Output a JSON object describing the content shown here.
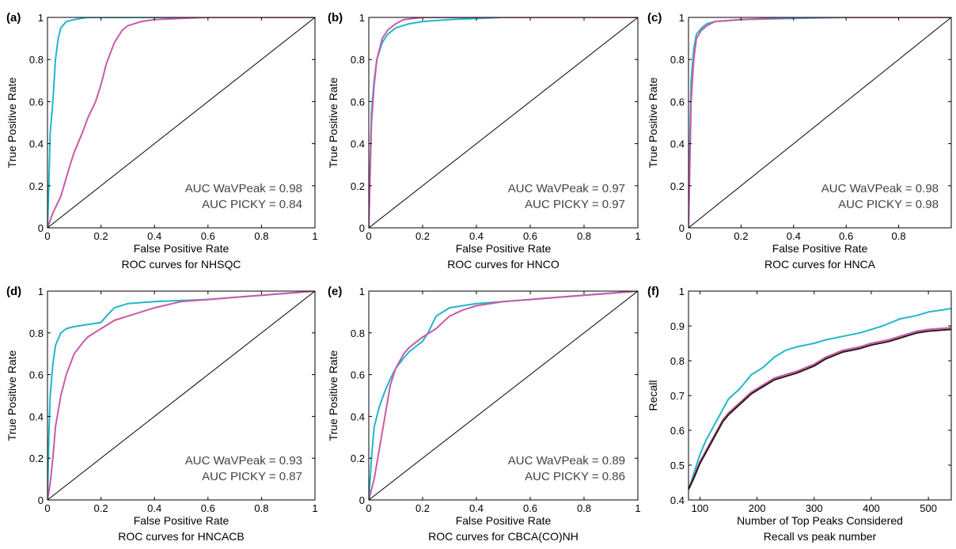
{
  "colors": {
    "wavpeak": "#1fb7c9",
    "picky": "#c85aa8",
    "diagonal": "#000000",
    "picky_recall": "#2a1a1a"
  },
  "chart_data": [
    {
      "panel": "(a)",
      "type": "line",
      "title": "ROC curves for NHSQC",
      "xlabel": "False Positive Rate",
      "ylabel": "True Positive Rate",
      "xlim": [
        0,
        1
      ],
      "ylim": [
        0,
        1
      ],
      "xticks": [
        0,
        0.2,
        0.4,
        0.6,
        0.8,
        1
      ],
      "xtick_labels": [
        "0",
        "0.2",
        "0.4",
        "0.6",
        "0.8",
        "1"
      ],
      "yticks": [
        0,
        0.2,
        0.4,
        0.6,
        0.8,
        1
      ],
      "ytick_labels": [
        "0",
        "0.2",
        "0.4",
        "0.6",
        "0.8",
        "1"
      ],
      "annotations": [
        "AUC WaVPeak = 0.98",
        "AUC PICKY = 0.84"
      ],
      "series": [
        {
          "color_key": "wavpeak",
          "x": [
            0,
            0.005,
            0.01,
            0.02,
            0.03,
            0.04,
            0.05,
            0.07,
            0.1,
            0.15,
            0.3,
            1
          ],
          "y": [
            0,
            0.2,
            0.45,
            0.6,
            0.8,
            0.9,
            0.95,
            0.98,
            0.99,
            1,
            1,
            1
          ]
        },
        {
          "color_key": "picky",
          "x": [
            0,
            0.02,
            0.05,
            0.08,
            0.1,
            0.13,
            0.15,
            0.18,
            0.2,
            0.22,
            0.25,
            0.28,
            0.3,
            0.35,
            0.4,
            0.5,
            0.6,
            1
          ],
          "y": [
            0,
            0.07,
            0.15,
            0.28,
            0.36,
            0.45,
            0.52,
            0.6,
            0.68,
            0.78,
            0.88,
            0.94,
            0.96,
            0.98,
            0.99,
            0.995,
            1,
            1
          ]
        },
        {
          "color_key": "diagonal",
          "x": [
            0,
            1
          ],
          "y": [
            0,
            1
          ]
        }
      ]
    },
    {
      "panel": "(b)",
      "type": "line",
      "title": "ROC curves for HNCO",
      "xlabel": "False Positive Rate",
      "ylabel": "True Positive Rate",
      "xlim": [
        0,
        1
      ],
      "ylim": [
        0,
        1
      ],
      "xticks": [
        0,
        0.2,
        0.4,
        0.6,
        0.8,
        1
      ],
      "xtick_labels": [
        "0",
        "0.2",
        "0.4",
        "0.6",
        "0.8",
        "1"
      ],
      "yticks": [
        0,
        0.2,
        0.4,
        0.6,
        0.8,
        1
      ],
      "ytick_labels": [
        "0",
        "0.2",
        "0.4",
        "0.6",
        "0.8",
        "1"
      ],
      "annotations": [
        "AUC WaVPeak = 0.97",
        "AUC PICKY = 0.97"
      ],
      "series": [
        {
          "color_key": "wavpeak",
          "x": [
            0,
            0.005,
            0.01,
            0.02,
            0.03,
            0.05,
            0.07,
            0.1,
            0.15,
            0.2,
            0.3,
            0.5,
            1
          ],
          "y": [
            0,
            0.3,
            0.55,
            0.7,
            0.8,
            0.88,
            0.92,
            0.95,
            0.97,
            0.98,
            0.99,
            1,
            1
          ]
        },
        {
          "color_key": "picky",
          "x": [
            0,
            0.005,
            0.01,
            0.02,
            0.03,
            0.05,
            0.07,
            0.1,
            0.13,
            0.2,
            0.4,
            1
          ],
          "y": [
            0,
            0.25,
            0.5,
            0.68,
            0.8,
            0.9,
            0.94,
            0.97,
            0.99,
            1,
            1,
            1
          ]
        },
        {
          "color_key": "diagonal",
          "x": [
            0,
            1
          ],
          "y": [
            0,
            1
          ]
        }
      ]
    },
    {
      "panel": "(c)",
      "type": "line",
      "title": "ROC curves for HNCA",
      "xlabel": "False Positive Rate",
      "ylabel": "True Positive Rate",
      "xlim": [
        0,
        1
      ],
      "ylim": [
        0,
        1
      ],
      "xticks": [
        0,
        0.2,
        0.4,
        0.6,
        0.8
      ],
      "xtick_labels": [
        "0",
        "0.2",
        "0.4",
        "0.6",
        "0.8"
      ],
      "yticks": [
        0,
        0.2,
        0.4,
        0.6,
        0.8,
        1
      ],
      "ytick_labels": [
        "0",
        "0.2",
        "0.4",
        "0.6",
        "0.8",
        "1"
      ],
      "annotations": [
        "AUC WaVPeak = 0.98",
        "AUC PICKY = 0.98"
      ],
      "series": [
        {
          "color_key": "wavpeak",
          "x": [
            0,
            0.005,
            0.01,
            0.02,
            0.03,
            0.05,
            0.07,
            0.1,
            0.2,
            0.4,
            0.6,
            1
          ],
          "y": [
            0,
            0.4,
            0.7,
            0.85,
            0.92,
            0.95,
            0.97,
            0.98,
            0.99,
            0.995,
            1,
            1
          ]
        },
        {
          "color_key": "picky",
          "x": [
            0,
            0.005,
            0.01,
            0.02,
            0.03,
            0.05,
            0.07,
            0.1,
            0.2,
            0.4,
            1
          ],
          "y": [
            0,
            0.3,
            0.6,
            0.8,
            0.9,
            0.94,
            0.96,
            0.98,
            0.99,
            1,
            1
          ]
        },
        {
          "color_key": "diagonal",
          "x": [
            0,
            1
          ],
          "y": [
            0,
            1
          ]
        }
      ]
    },
    {
      "panel": "(d)",
      "type": "line",
      "title": "ROC curves for HNCACB",
      "xlabel": "False Positive Rate",
      "ylabel": "True Positive Rate",
      "xlim": [
        0,
        1
      ],
      "ylim": [
        0,
        1
      ],
      "xticks": [
        0,
        0.2,
        0.4,
        0.6,
        0.8,
        1
      ],
      "xtick_labels": [
        "0",
        "0.2",
        "0.4",
        "0.6",
        "0.8",
        "1"
      ],
      "yticks": [
        0,
        0.2,
        0.4,
        0.6,
        0.8,
        1
      ],
      "ytick_labels": [
        "0",
        "0.2",
        "0.4",
        "0.6",
        "0.8",
        "1"
      ],
      "annotations": [
        "AUC WaVPeak = 0.93",
        "AUC PICKY = 0.87"
      ],
      "series": [
        {
          "color_key": "wavpeak",
          "x": [
            0,
            0.005,
            0.01,
            0.02,
            0.03,
            0.05,
            0.07,
            0.1,
            0.15,
            0.2,
            0.22,
            0.25,
            0.3,
            0.4,
            0.5,
            0.6,
            0.7,
            0.8,
            0.9,
            1
          ],
          "y": [
            0,
            0.3,
            0.5,
            0.65,
            0.74,
            0.8,
            0.82,
            0.83,
            0.84,
            0.85,
            0.88,
            0.92,
            0.94,
            0.95,
            0.955,
            0.96,
            0.97,
            0.98,
            0.99,
            1
          ]
        },
        {
          "color_key": "picky",
          "x": [
            0,
            0.01,
            0.02,
            0.03,
            0.05,
            0.07,
            0.1,
            0.13,
            0.15,
            0.2,
            0.25,
            0.3,
            0.4,
            0.5,
            0.6,
            0.7,
            0.8,
            0.9,
            1
          ],
          "y": [
            0,
            0.08,
            0.2,
            0.35,
            0.5,
            0.6,
            0.7,
            0.75,
            0.78,
            0.82,
            0.86,
            0.88,
            0.92,
            0.95,
            0.96,
            0.97,
            0.98,
            0.99,
            1
          ]
        },
        {
          "color_key": "diagonal",
          "x": [
            0,
            1
          ],
          "y": [
            0,
            1
          ]
        }
      ]
    },
    {
      "panel": "(e)",
      "type": "line",
      "title": "ROC curves for CBCA(CO)NH",
      "xlabel": "False Positive Rate",
      "ylabel": "True Positive Rate",
      "xlim": [
        0,
        1
      ],
      "ylim": [
        0,
        1
      ],
      "xticks": [
        0,
        0.2,
        0.4,
        0.6,
        0.8,
        1
      ],
      "xtick_labels": [
        "0",
        "0.2",
        "0.4",
        "0.6",
        "0.8",
        "1"
      ],
      "yticks": [
        0,
        0.2,
        0.4,
        0.6,
        0.8,
        1
      ],
      "ytick_labels": [
        "0",
        "0.2",
        "0.4",
        "0.6",
        "0.8",
        "1"
      ],
      "annotations": [
        "AUC WaVPeak = 0.89",
        "AUC PICKY = 0.86"
      ],
      "series": [
        {
          "color_key": "wavpeak",
          "x": [
            0,
            0.01,
            0.02,
            0.04,
            0.06,
            0.08,
            0.1,
            0.13,
            0.15,
            0.18,
            0.2,
            0.22,
            0.25,
            0.3,
            0.4,
            0.5,
            0.6,
            0.7,
            0.8,
            0.9,
            1
          ],
          "y": [
            0,
            0.2,
            0.35,
            0.45,
            0.52,
            0.58,
            0.63,
            0.68,
            0.71,
            0.74,
            0.76,
            0.8,
            0.88,
            0.92,
            0.94,
            0.95,
            0.96,
            0.97,
            0.98,
            0.99,
            1
          ]
        },
        {
          "color_key": "picky",
          "x": [
            0,
            0.02,
            0.04,
            0.06,
            0.08,
            0.1,
            0.13,
            0.15,
            0.2,
            0.25,
            0.3,
            0.35,
            0.4,
            0.5,
            0.6,
            0.7,
            0.8,
            0.9,
            1
          ],
          "y": [
            0,
            0.1,
            0.25,
            0.4,
            0.55,
            0.63,
            0.7,
            0.73,
            0.78,
            0.82,
            0.88,
            0.91,
            0.93,
            0.95,
            0.96,
            0.97,
            0.98,
            0.99,
            1
          ]
        },
        {
          "color_key": "diagonal",
          "x": [
            0,
            1
          ],
          "y": [
            0,
            1
          ]
        }
      ]
    },
    {
      "panel": "(f)",
      "type": "line",
      "title": "Recall vs peak number",
      "xlabel": "Number of Top Peaks Considered",
      "ylabel": "Recall",
      "xlim": [
        80,
        540
      ],
      "ylim": [
        0.4,
        1
      ],
      "xticks": [
        100,
        200,
        300,
        400,
        500
      ],
      "xtick_labels": [
        "100",
        "200",
        "300",
        "400",
        "500"
      ],
      "yticks": [
        0.4,
        0.5,
        0.6,
        0.7,
        0.8,
        0.9,
        1
      ],
      "ytick_labels": [
        "0.4",
        "0.5",
        "0.6",
        "0.7",
        "0.8",
        "0.9",
        "1"
      ],
      "annotations": [],
      "series": [
        {
          "color_key": "wavpeak",
          "x": [
            80,
            90,
            100,
            110,
            120,
            130,
            140,
            150,
            170,
            190,
            210,
            230,
            250,
            270,
            300,
            320,
            350,
            380,
            400,
            420,
            450,
            480,
            500,
            520,
            540
          ],
          "y": [
            0.43,
            0.48,
            0.53,
            0.57,
            0.6,
            0.63,
            0.66,
            0.69,
            0.72,
            0.76,
            0.78,
            0.81,
            0.83,
            0.84,
            0.85,
            0.86,
            0.87,
            0.88,
            0.89,
            0.9,
            0.92,
            0.93,
            0.94,
            0.945,
            0.95
          ]
        },
        {
          "color_key": "picky",
          "x": [
            80,
            90,
            100,
            110,
            120,
            130,
            140,
            150,
            170,
            190,
            210,
            230,
            250,
            270,
            300,
            320,
            350,
            380,
            400,
            430,
            460,
            480,
            500,
            540
          ],
          "y": [
            0.43,
            0.47,
            0.51,
            0.54,
            0.57,
            0.6,
            0.63,
            0.65,
            0.68,
            0.71,
            0.73,
            0.75,
            0.76,
            0.77,
            0.79,
            0.81,
            0.83,
            0.84,
            0.85,
            0.86,
            0.875,
            0.885,
            0.89,
            0.895
          ]
        },
        {
          "color_key": "picky_recall",
          "x": [
            80,
            90,
            100,
            110,
            120,
            130,
            140,
            150,
            170,
            190,
            210,
            230,
            250,
            270,
            300,
            320,
            350,
            380,
            400,
            430,
            460,
            480,
            500,
            540
          ],
          "y": [
            0.43,
            0.465,
            0.505,
            0.535,
            0.565,
            0.595,
            0.625,
            0.645,
            0.675,
            0.705,
            0.725,
            0.745,
            0.755,
            0.765,
            0.785,
            0.805,
            0.825,
            0.835,
            0.845,
            0.855,
            0.87,
            0.88,
            0.885,
            0.89
          ]
        }
      ]
    }
  ]
}
